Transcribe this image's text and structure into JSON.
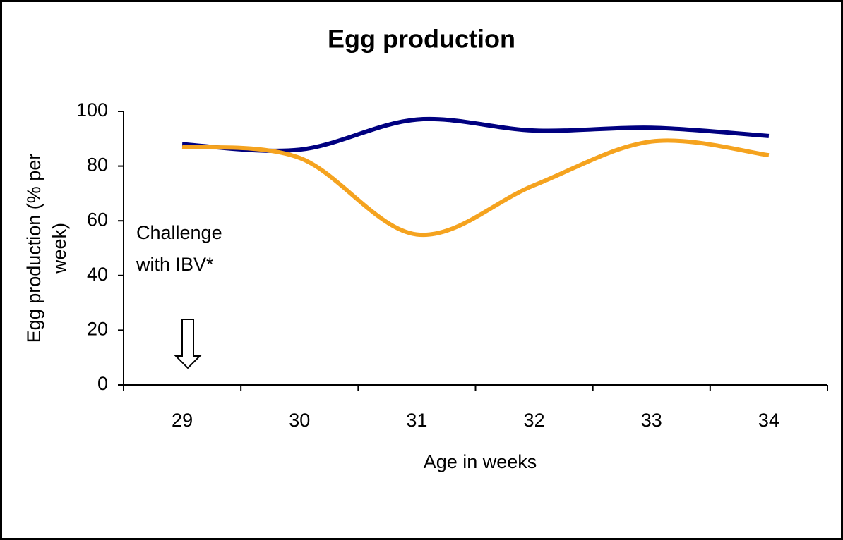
{
  "chart_data": {
    "type": "line",
    "title": "Egg production",
    "x_label": "Age in weeks",
    "y_label_lines": [
      "Egg production (% per",
      "week)"
    ],
    "annotation_lines": [
      "Challenge",
      "with IBV*"
    ],
    "categories": [
      "29",
      "30",
      "31",
      "32",
      "33",
      "34"
    ],
    "series": [
      {
        "color": "#000080",
        "values": [
          88,
          86,
          97,
          93,
          94,
          91
        ]
      },
      {
        "color": "#f5a31f",
        "values": [
          87,
          83,
          55,
          73,
          89,
          84
        ]
      }
    ],
    "ylim": [
      0,
      100
    ],
    "yticks": [
      0,
      20,
      40,
      60,
      80,
      100
    ],
    "grid": false
  }
}
